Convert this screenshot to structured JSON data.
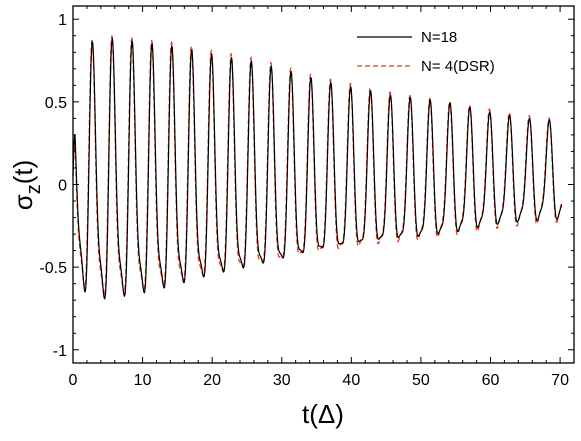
{
  "chart_data": {
    "type": "line",
    "xlabel": "t(Δ)",
    "ylabel_main": "σ",
    "ylabel_sub": "z",
    "ylabel_tail": "(t)",
    "xlim": [
      0,
      72
    ],
    "ylim": [
      -1.08,
      1.08
    ],
    "xticks": [
      0,
      10,
      20,
      30,
      40,
      50,
      60,
      70
    ],
    "xtick_labels": [
      "0",
      "10",
      "20",
      "30",
      "40",
      "50",
      "60",
      "70"
    ],
    "yticks": [
      1,
      0.5,
      0,
      -0.5,
      -1
    ],
    "ytick_labels": [
      "1",
      "0.5",
      "0",
      "-0.5",
      "-1"
    ],
    "legend_position": "top-right",
    "grid": false,
    "series": [
      {
        "name": "N=18",
        "color": "#000000",
        "style": "solid",
        "envelope": [
          [
            0,
            0.58
          ],
          [
            2,
            0.92
          ],
          [
            5,
            0.95
          ],
          [
            10,
            0.92
          ],
          [
            15,
            0.88
          ],
          [
            20,
            0.82
          ],
          [
            25,
            0.78
          ],
          [
            30,
            0.72
          ],
          [
            35,
            0.65
          ],
          [
            40,
            0.6
          ],
          [
            45,
            0.55
          ],
          [
            50,
            0.52
          ],
          [
            55,
            0.48
          ],
          [
            60,
            0.42
          ],
          [
            65,
            0.38
          ],
          [
            70,
            0.36
          ]
        ],
        "baseline": [
          [
            0,
            -0.05
          ],
          [
            10,
            -0.05
          ],
          [
            20,
            -0.03
          ],
          [
            30,
            -0.02
          ],
          [
            40,
            -0.01
          ],
          [
            50,
            0.0
          ],
          [
            60,
            0.02
          ],
          [
            70,
            0.03
          ]
        ],
        "end": [
          70.2,
          -0.12
        ]
      },
      {
        "name": "N=  4(DSR)",
        "color": "#e8391e",
        "style": "dashed",
        "envelope": [
          [
            0,
            0.58
          ],
          [
            2,
            0.93
          ],
          [
            5,
            0.96
          ],
          [
            10,
            0.93
          ],
          [
            15,
            0.9
          ],
          [
            20,
            0.84
          ],
          [
            25,
            0.8
          ],
          [
            30,
            0.74
          ],
          [
            35,
            0.67
          ],
          [
            40,
            0.62
          ],
          [
            45,
            0.57
          ],
          [
            50,
            0.53
          ],
          [
            55,
            0.49
          ],
          [
            60,
            0.44
          ],
          [
            65,
            0.4
          ],
          [
            70,
            0.37
          ]
        ],
        "baseline": [
          [
            0,
            -0.05
          ],
          [
            10,
            -0.05
          ],
          [
            20,
            -0.03
          ],
          [
            30,
            -0.02
          ],
          [
            40,
            -0.01
          ],
          [
            50,
            0.0
          ],
          [
            60,
            0.02
          ],
          [
            70,
            0.03
          ]
        ],
        "end": [
          70.2,
          -0.1
        ]
      }
    ]
  },
  "colors": {
    "black_series": "#000000",
    "red_series": "#e8391e",
    "frame": "#000000"
  }
}
